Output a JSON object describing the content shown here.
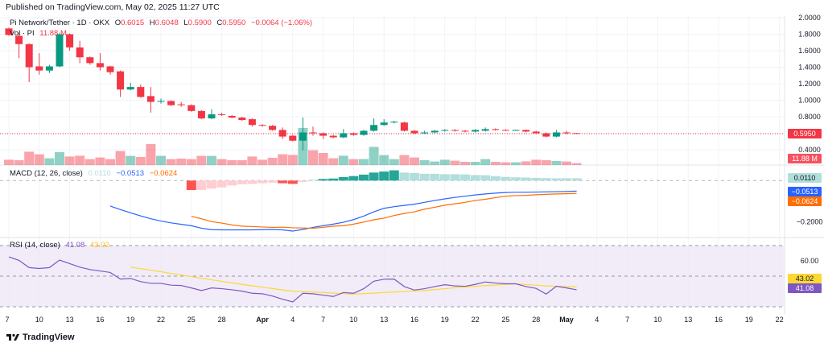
{
  "header": {
    "published": "Published on TradingView.com, May 02, 2025 11:27 UTC"
  },
  "legend": {
    "symbol": "Pi Network/Tether · 1D · OKX",
    "o_label": "O",
    "o": "0.6015",
    "h_label": "H",
    "h": "0.6048",
    "l_label": "L",
    "l": "0.5900",
    "c_label": "C",
    "c": "0.5950",
    "change": "−0.0064 (−1.06%)",
    "vol_label": "Vol · PI",
    "vol": "11.88 M",
    "macd_label": "MACD (12, 26, close)",
    "macd_hist": "0.0110",
    "macd_line": "−0.0513",
    "macd_signal": "−0.0624",
    "rsi_label": "RSI (14, close)",
    "rsi": "41.08",
    "rsi_ma": "43.02"
  },
  "axis": {
    "price_ticks": [
      "2.0000",
      "1.8000",
      "1.6000",
      "1.4000",
      "1.2000",
      "1.0000",
      "0.8000",
      "0.4000"
    ],
    "price_badge": "0.5950",
    "vol_badge": "11.88 M",
    "macd_ticks": [
      "−0.2000"
    ],
    "macd_badges": [
      "0.0110",
      "−0.0513",
      "−0.0624"
    ],
    "rsi_ticks": [
      "60.00"
    ],
    "rsi_badges": [
      "43.02",
      "41.08"
    ],
    "x_labels": [
      "7",
      "10",
      "13",
      "16",
      "19",
      "22",
      "25",
      "28",
      "Apr",
      "4",
      "7",
      "10",
      "13",
      "16",
      "19",
      "22",
      "25",
      "28",
      "May",
      "4",
      "7",
      "10",
      "13",
      "16",
      "19",
      "22"
    ]
  },
  "colors": {
    "up": "#089981",
    "down": "#f23645",
    "macd": "#2962ff",
    "signal": "#ff6d00",
    "rsi": "#7e57c2",
    "rsi_ma": "#fdd835",
    "rsi_band": "#ede7f6"
  },
  "logo": {
    "text": "TradingView"
  },
  "chart_data": {
    "type": "candlestick",
    "x_start": "Mar 7",
    "x_end": "May 2",
    "ohlc": [
      [
        1.87,
        1.88,
        1.78,
        1.79
      ],
      [
        1.78,
        1.82,
        1.51,
        1.68
      ],
      [
        1.68,
        1.69,
        1.22,
        1.4
      ],
      [
        1.41,
        1.57,
        1.31,
        1.36
      ],
      [
        1.36,
        1.43,
        1.33,
        1.41
      ],
      [
        1.41,
        1.82,
        1.4,
        1.8
      ],
      [
        1.8,
        1.81,
        1.6,
        1.64
      ],
      [
        1.64,
        1.72,
        1.45,
        1.52
      ],
      [
        1.52,
        1.53,
        1.43,
        1.45
      ],
      [
        1.45,
        1.57,
        1.36,
        1.4
      ],
      [
        1.41,
        1.42,
        1.31,
        1.34
      ],
      [
        1.35,
        1.36,
        1.04,
        1.13
      ],
      [
        1.13,
        1.21,
        1.12,
        1.16
      ],
      [
        1.16,
        1.19,
        1.03,
        1.04
      ],
      [
        1.05,
        1.16,
        0.85,
        0.98
      ],
      [
        0.98,
        1.02,
        0.96,
        0.99
      ],
      [
        0.99,
        1.0,
        0.93,
        0.94
      ],
      [
        0.95,
        0.98,
        0.92,
        0.94
      ],
      [
        0.94,
        0.95,
        0.86,
        0.87
      ],
      [
        0.87,
        0.88,
        0.77,
        0.78
      ],
      [
        0.78,
        0.89,
        0.77,
        0.83
      ],
      [
        0.83,
        0.85,
        0.81,
        0.82
      ],
      [
        0.81,
        0.82,
        0.78,
        0.79
      ],
      [
        0.79,
        0.8,
        0.75,
        0.76
      ],
      [
        0.77,
        0.78,
        0.68,
        0.7
      ],
      [
        0.7,
        0.71,
        0.68,
        0.69
      ],
      [
        0.69,
        0.7,
        0.63,
        0.64
      ],
      [
        0.64,
        0.67,
        0.53,
        0.56
      ],
      [
        0.57,
        0.58,
        0.5,
        0.51
      ],
      [
        0.51,
        0.79,
        0.39,
        0.61
      ],
      [
        0.61,
        0.68,
        0.57,
        0.6
      ],
      [
        0.6,
        0.61,
        0.53,
        0.57
      ],
      [
        0.57,
        0.58,
        0.54,
        0.55
      ],
      [
        0.55,
        0.65,
        0.54,
        0.6
      ],
      [
        0.6,
        0.61,
        0.57,
        0.58
      ],
      [
        0.58,
        0.64,
        0.57,
        0.63
      ],
      [
        0.63,
        0.78,
        0.62,
        0.7
      ],
      [
        0.7,
        0.77,
        0.69,
        0.73
      ],
      [
        0.73,
        0.75,
        0.72,
        0.74
      ],
      [
        0.73,
        0.74,
        0.62,
        0.63
      ],
      [
        0.63,
        0.64,
        0.59,
        0.6
      ],
      [
        0.6,
        0.63,
        0.59,
        0.61
      ],
      [
        0.61,
        0.64,
        0.6,
        0.63
      ],
      [
        0.63,
        0.65,
        0.62,
        0.64
      ],
      [
        0.64,
        0.65,
        0.62,
        0.63
      ],
      [
        0.63,
        0.64,
        0.61,
        0.62
      ],
      [
        0.62,
        0.65,
        0.61,
        0.64
      ],
      [
        0.63,
        0.67,
        0.62,
        0.65
      ],
      [
        0.65,
        0.66,
        0.63,
        0.64
      ],
      [
        0.64,
        0.65,
        0.63,
        0.635
      ],
      [
        0.635,
        0.645,
        0.63,
        0.64
      ],
      [
        0.64,
        0.645,
        0.61,
        0.62
      ],
      [
        0.62,
        0.63,
        0.59,
        0.6
      ],
      [
        0.6,
        0.61,
        0.55,
        0.56
      ],
      [
        0.56,
        0.64,
        0.55,
        0.61
      ],
      [
        0.61,
        0.63,
        0.59,
        0.6
      ],
      [
        0.6015,
        0.6048,
        0.59,
        0.595
      ]
    ],
    "volume_millions": [
      33,
      30,
      83,
      67,
      42,
      80,
      53,
      58,
      37,
      47,
      37,
      87,
      57,
      50,
      130,
      57,
      37,
      40,
      37,
      57,
      57,
      37,
      30,
      30,
      53,
      33,
      45,
      67,
      63,
      230,
      92,
      75,
      42,
      58,
      37,
      37,
      113,
      62,
      37,
      62,
      47,
      30,
      22,
      33,
      27,
      20,
      20,
      37,
      20,
      17,
      17,
      23,
      33,
      30,
      25,
      22,
      11.88
    ],
    "macd": [
      null,
      null,
      null,
      null,
      null,
      null,
      null,
      null,
      null,
      null,
      -0.124,
      -0.141,
      -0.157,
      -0.172,
      -0.186,
      -0.197,
      -0.206,
      -0.213,
      -0.22,
      -0.232,
      -0.239,
      -0.24,
      -0.24,
      -0.24,
      -0.24,
      -0.239,
      -0.238,
      -0.24,
      -0.246,
      -0.238,
      -0.228,
      -0.22,
      -0.212,
      -0.203,
      -0.19,
      -0.173,
      -0.152,
      -0.135,
      -0.127,
      -0.121,
      -0.115,
      -0.106,
      -0.097,
      -0.089,
      -0.082,
      -0.076,
      -0.07,
      -0.065,
      -0.061,
      -0.058,
      -0.057,
      -0.057,
      -0.056,
      -0.055,
      -0.054,
      -0.053,
      -0.0513
    ],
    "signal": [
      null,
      null,
      null,
      null,
      null,
      null,
      null,
      null,
      null,
      null,
      null,
      null,
      null,
      null,
      null,
      null,
      null,
      null,
      -0.174,
      -0.186,
      -0.2,
      -0.207,
      -0.216,
      -0.222,
      -0.224,
      -0.226,
      -0.228,
      -0.227,
      -0.23,
      -0.231,
      -0.232,
      -0.228,
      -0.222,
      -0.22,
      -0.212,
      -0.202,
      -0.191,
      -0.183,
      -0.17,
      -0.16,
      -0.152,
      -0.139,
      -0.13,
      -0.12,
      -0.113,
      -0.106,
      -0.097,
      -0.091,
      -0.083,
      -0.076,
      -0.073,
      -0.072,
      -0.069,
      -0.067,
      -0.065,
      -0.064,
      -0.0624
    ],
    "histogram": [
      null,
      null,
      null,
      null,
      null,
      null,
      null,
      null,
      null,
      null,
      null,
      null,
      null,
      null,
      null,
      null,
      null,
      null,
      -0.046,
      -0.046,
      -0.039,
      -0.033,
      -0.024,
      -0.018,
      -0.016,
      -0.013,
      -0.01,
      -0.013,
      -0.016,
      -0.007,
      0.004,
      0.008,
      0.01,
      0.017,
      0.022,
      0.029,
      0.039,
      0.044,
      0.05,
      0.039,
      0.037,
      0.033,
      0.033,
      0.031,
      0.031,
      0.03,
      0.027,
      0.026,
      0.022,
      0.018,
      0.016,
      0.015,
      0.013,
      0.012,
      0.011,
      0.011,
      0.011
    ],
    "rsi": [
      62.6,
      60.3,
      55.6,
      55.0,
      55.6,
      60.5,
      58.2,
      55.9,
      54.3,
      53.4,
      52.4,
      48.1,
      48.5,
      46.4,
      45.3,
      45.3,
      44.1,
      43.9,
      42.3,
      40.6,
      42.3,
      41.8,
      41.1,
      40.2,
      38.8,
      38.5,
      37.0,
      34.9,
      33.2,
      38.8,
      38.5,
      37.6,
      36.7,
      39.3,
      38.8,
      41.8,
      46.7,
      48.0,
      48.1,
      43.2,
      40.9,
      41.8,
      43.2,
      44.4,
      43.6,
      43.4,
      44.6,
      46.2,
      45.5,
      45.0,
      45.0,
      43.2,
      42.0,
      38.3,
      43.4,
      42.3,
      41.08
    ],
    "rsi_ma": [
      null,
      null,
      null,
      null,
      null,
      null,
      null,
      null,
      null,
      null,
      null,
      null,
      55.9,
      54.9,
      53.9,
      52.9,
      51.8,
      50.8,
      49.7,
      48.6,
      47.6,
      46.6,
      45.6,
      44.6,
      43.7,
      42.8,
      41.9,
      41.0,
      40.2,
      39.9,
      39.6,
      39.3,
      38.9,
      38.5,
      38.3,
      38.6,
      38.9,
      39.3,
      39.6,
      39.9,
      40.3,
      40.6,
      41.2,
      41.8,
      42.4,
      42.9,
      43.3,
      43.8,
      44.2,
      44.6,
      45.0,
      44.5,
      44.1,
      43.6,
      43.4,
      43.2,
      43.02
    ],
    "price_range": [
      0.4,
      2.0
    ],
    "rsi_bands": [
      30,
      50,
      70
    ],
    "grid": true,
    "last_price": 0.595
  }
}
